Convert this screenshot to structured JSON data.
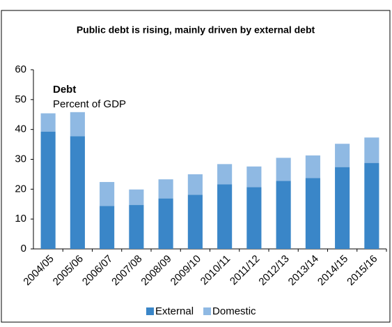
{
  "chart_data": {
    "type": "stacked_bar",
    "title": "Public debt is rising, mainly driven by external debt",
    "annotation_title": "Debt",
    "annotation_subtitle": "Percent of GDP",
    "categories": [
      "2004/05",
      "2005/06",
      "2006/07",
      "2007/08",
      "2008/09",
      "2009/10",
      "2010/11",
      "2011/12",
      "2012/13",
      "2013/14",
      "2014/15",
      "2015/16"
    ],
    "series": [
      {
        "name": "External",
        "color": "#3a86c8",
        "values": [
          39.3,
          37.7,
          14.4,
          14.7,
          16.9,
          18.1,
          21.6,
          20.7,
          22.8,
          23.7,
          27.4,
          28.8
        ]
      },
      {
        "name": "Domestic",
        "color": "#8fb9e3",
        "values": [
          6.1,
          8.1,
          8.0,
          5.2,
          6.4,
          6.9,
          6.8,
          6.9,
          7.7,
          7.6,
          7.8,
          8.5
        ]
      }
    ],
    "ylim": [
      0,
      60
    ],
    "yticks": [
      0,
      10,
      20,
      30,
      40,
      50,
      60
    ],
    "grid": false
  }
}
